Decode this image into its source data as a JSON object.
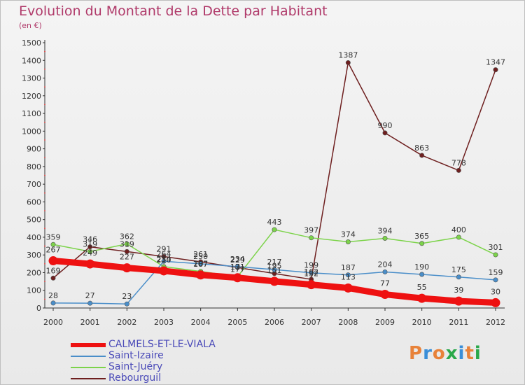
{
  "header": {
    "title": "Evolution du Montant de la Dette par Habitant",
    "subtitle": "(en €)"
  },
  "logo": {
    "text": "Proxiti",
    "colors": [
      "#e8823a",
      "#3a8ed8",
      "#e8823a",
      "#2aa84a",
      "#3a8ed8",
      "#e8823a",
      "#2aa84a"
    ]
  },
  "chart_data": {
    "type": "line",
    "title": "Evolution du Montant de la Dette par Habitant",
    "subtitle": "(en €)",
    "xlabel": "",
    "ylabel": "",
    "x": [
      "2000",
      "2001",
      "2002",
      "2003",
      "2004",
      "2005",
      "2006",
      "2007",
      "2008",
      "2009",
      "2010",
      "2011",
      "2012"
    ],
    "ylim": [
      0,
      1500
    ],
    "yticks": [
      0,
      100,
      200,
      300,
      400,
      500,
      600,
      700,
      800,
      900,
      1000,
      1100,
      1200,
      1300,
      1400,
      1500
    ],
    "grid": false,
    "legend_position": "bottom-left",
    "series": [
      {
        "name": "CALMELS-ET-LE-VIALA",
        "color": "#ee1111",
        "values": [
          267,
          249,
          227,
          210,
          187,
          171,
          151,
          132,
          113,
          77,
          55,
          39,
          30
        ]
      },
      {
        "name": "Saint-Izaire",
        "color": "#4a8ec9",
        "values": [
          28,
          27,
          23,
          264,
          250,
          234,
          217,
          199,
          187,
          204,
          190,
          175,
          159
        ]
      },
      {
        "name": "Saint-Juéry",
        "color": "#7cd34a",
        "values": [
          359,
          319,
          362,
          234,
          207,
          177,
          443,
          397,
          374,
          394,
          365,
          400,
          301
        ]
      },
      {
        "name": "Rebourguil",
        "color": "#6e1f1f",
        "values": [
          169,
          346,
          319,
          291,
          261,
          229,
          195,
          162,
          1387,
          990,
          863,
          778,
          1347
        ]
      }
    ]
  }
}
